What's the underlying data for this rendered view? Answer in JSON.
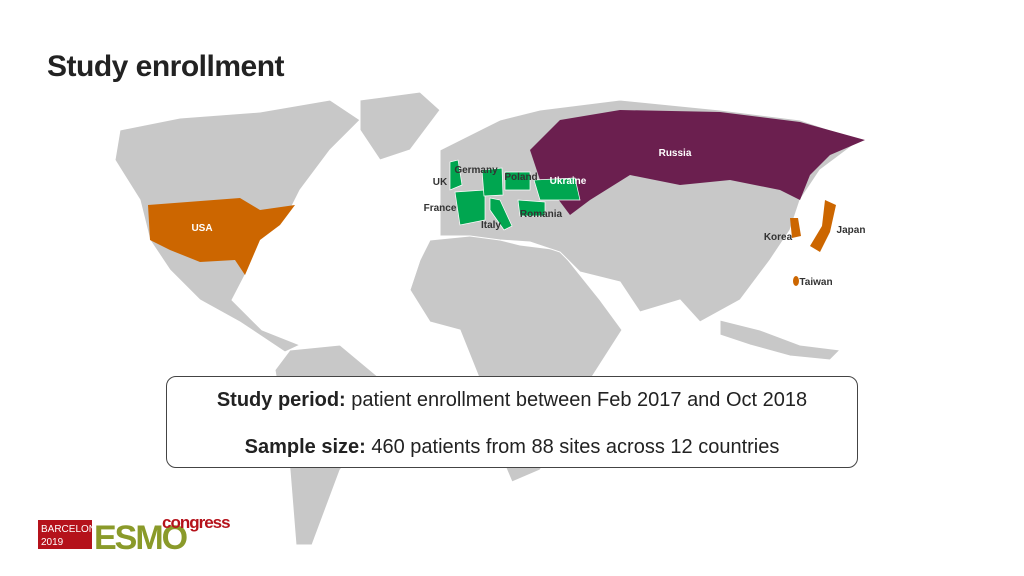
{
  "header": {
    "title": "Study enrollment"
  },
  "map": {
    "countries": [
      {
        "name": "Russia"
      },
      {
        "name": "Germany"
      },
      {
        "name": "Poland"
      },
      {
        "name": "UK"
      },
      {
        "name": "Ukraine"
      },
      {
        "name": "France"
      },
      {
        "name": "Romania"
      },
      {
        "name": "Italy"
      },
      {
        "name": "USA"
      },
      {
        "name": "Japan"
      },
      {
        "name": "Korea"
      },
      {
        "name": "Taiwan"
      }
    ]
  },
  "info_box": {
    "period_label": "Study period:",
    "period_text": "patient enrollment between Feb 2017 and Oct 2018",
    "sample_label": "Sample size:",
    "sample_text": "460 patients from 88 sites across 12 countries"
  },
  "logo": {
    "city": "BARCELONA",
    "year": "2019",
    "brand": "ESMO",
    "event": "congress"
  }
}
